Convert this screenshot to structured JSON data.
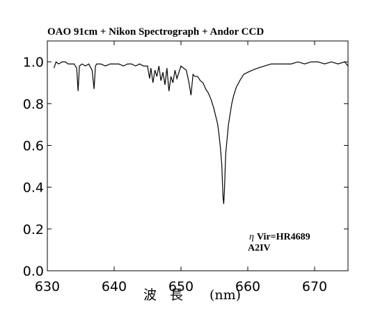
{
  "chart_data": {
    "type": "line",
    "title": "OAO 91cm + Nikon Spectrograph + Andor CCD",
    "xlabel": "波　長　　(nm)",
    "ylabel": "",
    "xlim": [
      630,
      675
    ],
    "ylim": [
      0.0,
      1.1
    ],
    "xticks": [
      630,
      640,
      650,
      660,
      670
    ],
    "yticks": [
      0.0,
      0.2,
      0.4,
      0.6,
      0.8,
      1.0
    ],
    "xtick_labels": [
      "630",
      "640",
      "650",
      "660",
      "670"
    ],
    "ytick_labels": [
      "0.0",
      "0.2",
      "0.4",
      "0.6",
      "0.8",
      "1.0"
    ],
    "annotations": [
      "η",
      "Vir=HR4689",
      "A2IV"
    ],
    "grid": false,
    "series": [
      {
        "x": [
          631.0,
          631.3,
          631.7,
          632.2,
          632.7,
          633.1,
          633.6,
          634.0,
          634.4,
          634.6,
          634.8,
          635.2,
          635.7,
          636.2,
          636.7,
          637.0,
          637.2,
          637.4,
          638.0,
          638.7,
          639.4,
          640.0,
          640.7,
          641.4,
          642.0,
          642.6,
          643.2,
          643.8,
          644.4,
          645.0,
          645.3,
          645.5,
          645.8,
          646.1,
          646.4,
          646.7,
          647.0,
          647.3,
          647.6,
          647.9,
          648.2,
          648.5,
          648.8,
          649.1,
          649.4,
          649.7,
          650.0,
          650.4,
          650.8,
          651.2,
          651.5,
          651.8,
          652.1,
          652.5,
          652.9,
          653.3,
          653.7,
          654.1,
          654.5,
          654.9,
          655.2,
          655.5,
          655.7,
          655.9,
          656.1,
          656.2,
          656.3,
          656.4,
          656.5,
          656.6,
          656.7,
          656.9,
          657.1,
          657.3,
          657.6,
          657.9,
          658.3,
          658.8,
          659.4,
          660.0,
          660.7,
          661.5,
          662.5,
          663.5,
          664.5,
          665.5,
          666.5,
          667.5,
          668.5,
          669.5,
          670.5,
          671.5,
          672.5,
          673.5,
          674.5,
          675.0
        ],
        "y": [
          0.97,
          1.0,
          0.99,
          1.0,
          1.0,
          0.99,
          0.99,
          0.99,
          0.97,
          0.86,
          0.98,
          0.99,
          0.98,
          0.99,
          0.96,
          0.87,
          0.98,
          0.99,
          0.99,
          0.98,
          0.99,
          0.99,
          0.99,
          0.98,
          0.99,
          0.99,
          0.98,
          0.99,
          0.98,
          0.98,
          0.92,
          0.97,
          0.9,
          0.96,
          0.93,
          0.98,
          0.91,
          0.95,
          0.89,
          0.97,
          0.86,
          0.93,
          0.9,
          0.96,
          0.92,
          0.95,
          0.98,
          0.97,
          0.96,
          0.9,
          0.84,
          0.94,
          0.93,
          0.93,
          0.91,
          0.9,
          0.87,
          0.85,
          0.82,
          0.78,
          0.74,
          0.7,
          0.65,
          0.59,
          0.51,
          0.43,
          0.35,
          0.32,
          0.38,
          0.48,
          0.56,
          0.63,
          0.7,
          0.74,
          0.8,
          0.84,
          0.88,
          0.91,
          0.94,
          0.95,
          0.96,
          0.97,
          0.98,
          0.99,
          0.99,
          0.99,
          0.99,
          1.0,
          0.99,
          1.0,
          1.0,
          0.99,
          1.0,
          0.99,
          1.0,
          0.98
        ]
      }
    ]
  }
}
